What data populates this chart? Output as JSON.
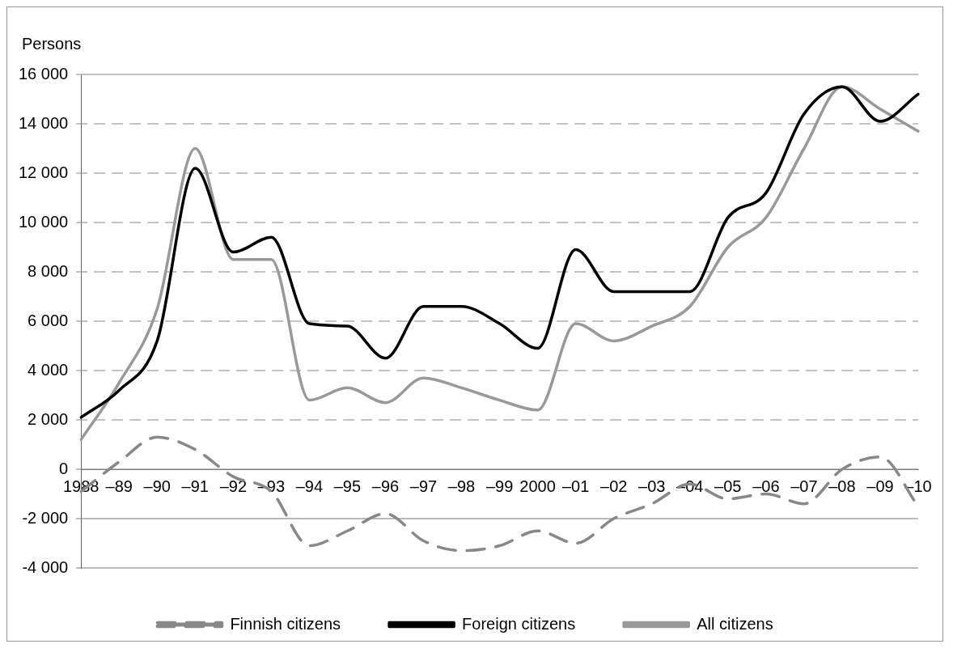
{
  "chart_data": {
    "type": "line",
    "ylabel": "Persons",
    "categories": [
      "1988",
      "–89",
      "–90",
      "–91",
      "–92",
      "–93",
      "–94",
      "–95",
      "–96",
      "–97",
      "–98",
      "–99",
      "2000",
      "–01",
      "–02",
      "–03",
      "–04",
      "–05",
      "–06",
      "–07",
      "–08",
      "–09",
      "–10"
    ],
    "series": [
      {
        "name": "Finnish citizens",
        "color": "#888888",
        "line_style": "dashed",
        "values": [
          -900,
          300,
          1300,
          800,
          -300,
          -900,
          -3100,
          -2500,
          -1800,
          -2900,
          -3300,
          -3100,
          -2500,
          -3000,
          -2000,
          -1400,
          -600,
          -1200,
          -1000,
          -1400,
          0,
          500,
          -1500
        ]
      },
      {
        "name": "Foreign citizens",
        "color": "#000000",
        "line_style": "solid",
        "values": [
          2100,
          3200,
          5200,
          12200,
          8800,
          9400,
          5900,
          5800,
          4500,
          6600,
          6600,
          5900,
          4900,
          8900,
          7200,
          7200,
          7200,
          10200,
          11200,
          14400,
          15500,
          14100,
          15200
        ]
      },
      {
        "name": "All citizens",
        "color": "#999999",
        "line_style": "solid",
        "values": [
          1200,
          3500,
          6500,
          13000,
          8500,
          8500,
          2800,
          3300,
          2700,
          3700,
          3300,
          2800,
          2400,
          5900,
          5200,
          5800,
          6600,
          9000,
          10200,
          13000,
          15500,
          14600,
          13700
        ]
      }
    ],
    "ylim": [
      -4000,
      16000
    ],
    "yticks": [
      {
        "value": -4000,
        "label": "-4 000"
      },
      {
        "value": -2000,
        "label": "-2 000"
      },
      {
        "value": 0,
        "label": "0"
      },
      {
        "value": 2000,
        "label": "2 000"
      },
      {
        "value": 4000,
        "label": "4 000"
      },
      {
        "value": 6000,
        "label": "6 000"
      },
      {
        "value": 8000,
        "label": "8 000"
      },
      {
        "value": 10000,
        "label": "10 000"
      },
      {
        "value": 12000,
        "label": "12 000"
      },
      {
        "value": 14000,
        "label": "14 000"
      },
      {
        "value": 16000,
        "label": "16 000"
      }
    ],
    "grid": "y",
    "legend": "bottom",
    "marker": "none"
  }
}
